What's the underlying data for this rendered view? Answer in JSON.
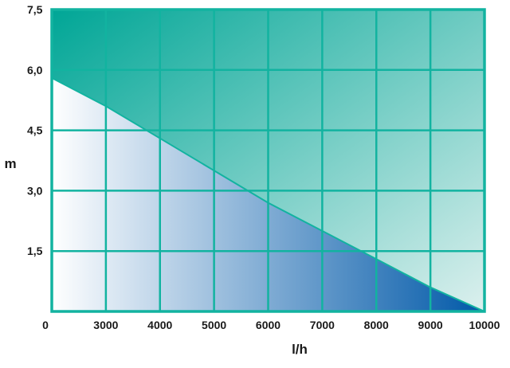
{
  "chart_data": {
    "type": "area",
    "xlabel": "l/h",
    "ylabel": "m",
    "x_ticks": [
      "0",
      "3000",
      "4000",
      "5000",
      "6000",
      "7000",
      "8000",
      "9000",
      "10000"
    ],
    "y_ticks": [
      "7,5",
      "6,0",
      "4,5",
      "3,0",
      "1,5"
    ],
    "xlim": [
      2000,
      10000
    ],
    "ylim": [
      0,
      7.5
    ],
    "grid": true,
    "series": [
      {
        "x": [
          2000,
          3000,
          4000,
          5000,
          6000,
          7000,
          8000,
          9000,
          10000
        ],
        "y": [
          5.8,
          5.1,
          4.3,
          3.5,
          2.7,
          2.0,
          1.3,
          0.6,
          0.0
        ]
      }
    ],
    "colors": {
      "frame": "#12b3a0",
      "upper_region_dark": "#00a696",
      "upper_region_light": "#dcf0ee",
      "lower_region_light": "#ffffff",
      "lower_region_dark": "#0058a8"
    }
  }
}
